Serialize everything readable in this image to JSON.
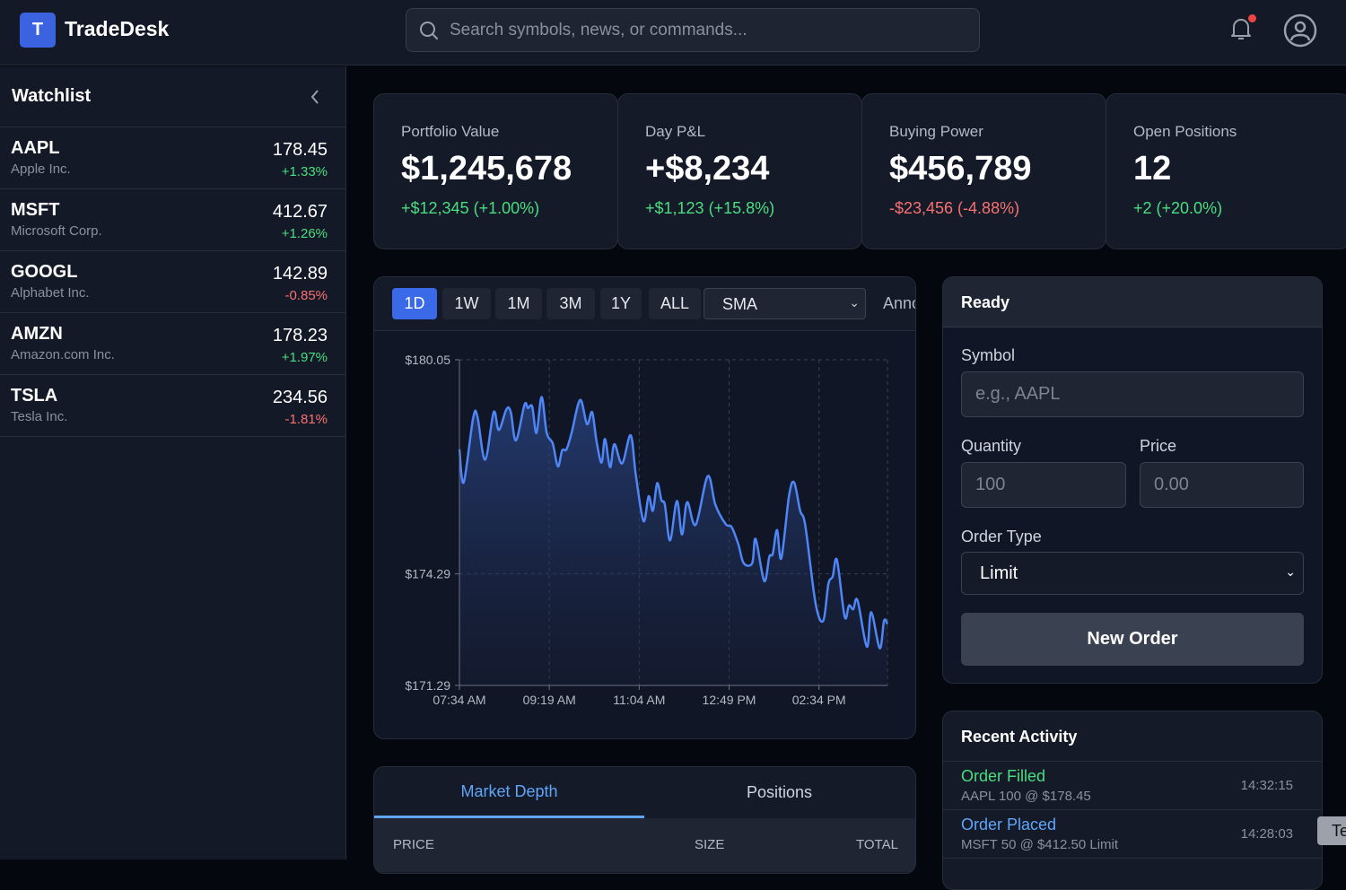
{
  "header": {
    "logo_letter": "T",
    "title": "TradeDesk",
    "search_placeholder": "Search symbols, news, or commands...",
    "notification_dot_color": "#ef4444"
  },
  "watchlist": {
    "title": "Watchlist",
    "items": [
      {
        "symbol": "AAPL",
        "name": "Apple Inc.",
        "price": "178.45",
        "change": "+1.33%",
        "dir": "pos"
      },
      {
        "symbol": "MSFT",
        "name": "Microsoft Corp.",
        "price": "412.67",
        "change": "+1.26%",
        "dir": "pos"
      },
      {
        "symbol": "GOOGL",
        "name": "Alphabet Inc.",
        "price": "142.89",
        "change": "-0.85%",
        "dir": "neg"
      },
      {
        "symbol": "AMZN",
        "name": "Amazon.com Inc.",
        "price": "178.23",
        "change": "+1.97%",
        "dir": "pos"
      },
      {
        "symbol": "TSLA",
        "name": "Tesla Inc.",
        "price": "234.56",
        "change": "-1.81%",
        "dir": "neg"
      }
    ]
  },
  "stats": [
    {
      "label": "Portfolio Value",
      "value": "$1,245,678",
      "change": "+$12,345 (+1.00%)",
      "dir": "pos"
    },
    {
      "label": "Day P&L",
      "value": "+$8,234",
      "change": "+$1,123 (+15.8%)",
      "dir": "pos"
    },
    {
      "label": "Buying Power",
      "value": "$456,789",
      "change": "-$23,456 (-4.88%)",
      "dir": "neg"
    },
    {
      "label": "Open Positions",
      "value": "12",
      "change": "+2 (+20.0%)",
      "dir": "pos"
    }
  ],
  "chart_toolbar": {
    "timeframes": [
      "1D",
      "1W",
      "1M",
      "3M",
      "1Y",
      "ALL"
    ],
    "active": "1D",
    "indicator": "SMA",
    "annotate_label": "Anno"
  },
  "chart_data": {
    "type": "area",
    "line_color": "#4f86f7",
    "grid": true,
    "ylim": [
      171.29,
      180.05
    ],
    "y_ticks": [
      "$180.05",
      "$174.29",
      "$171.29"
    ],
    "y_tick_values": [
      180.05,
      174.29,
      171.29
    ],
    "x_ticks": [
      "07:34 AM",
      "09:19 AM",
      "11:04 AM",
      "12:49 PM",
      "02:34 PM"
    ],
    "x_tick_values": [
      "07:34",
      "09:19",
      "11:04",
      "12:49",
      "14:34"
    ],
    "xlim": [
      "07:34",
      "15:54"
    ],
    "x": [
      "07:34",
      "07:39",
      "07:50",
      "07:55",
      "08:04",
      "08:14",
      "08:20",
      "08:29",
      "08:34",
      "08:40",
      "08:50",
      "08:54",
      "08:59",
      "09:04",
      "09:10",
      "09:16",
      "09:23",
      "09:29",
      "09:34",
      "09:39",
      "09:45",
      "09:55",
      "10:03",
      "10:09",
      "10:14",
      "10:20",
      "10:24",
      "10:30",
      "10:35",
      "10:44",
      "10:54",
      "11:00",
      "11:09",
      "11:15",
      "11:20",
      "11:25",
      "11:30",
      "11:34",
      "11:40",
      "11:48",
      "11:54",
      "12:00",
      "12:10",
      "12:24",
      "12:33",
      "12:45",
      "12:52",
      "13:00",
      "13:06",
      "13:16",
      "13:20",
      "13:30",
      "13:36",
      "13:40",
      "13:45",
      "13:50",
      "13:59",
      "14:05",
      "14:12",
      "14:18",
      "14:30",
      "14:39",
      "14:45",
      "14:50",
      "14:55",
      "15:04",
      "15:09",
      "15:14",
      "15:19",
      "15:30",
      "15:35",
      "15:45",
      "15:50",
      "15:54"
    ],
    "y": [
      177.64,
      176.75,
      178.48,
      178.52,
      177.36,
      178.64,
      178.16,
      178.72,
      178.64,
      177.88,
      178.84,
      178.75,
      178.79,
      178.08,
      179.05,
      178.08,
      177.8,
      177.18,
      177.61,
      177.64,
      178.08,
      178.97,
      178.32,
      178.64,
      177.88,
      177.28,
      177.92,
      177.16,
      177.78,
      177.26,
      178.02,
      176.96,
      175.71,
      176.38,
      175.99,
      176.73,
      176.27,
      176.15,
      175.19,
      176.25,
      175.35,
      176.22,
      175.61,
      176.92,
      176.15,
      175.63,
      175.55,
      175.07,
      174.58,
      174.58,
      175.23,
      174.1,
      174.75,
      174.83,
      175.47,
      174.71,
      176.39,
      176.75,
      175.99,
      175.59,
      173.5,
      173.03,
      174.02,
      174.22,
      174.66,
      173.14,
      173.44,
      173.34,
      173.58,
      172.33,
      173.26,
      172.29,
      173.03,
      172.94
    ]
  },
  "order_form": {
    "status": "Ready",
    "symbol_label": "Symbol",
    "symbol_placeholder": "e.g., AAPL",
    "quantity_label": "Quantity",
    "quantity_placeholder": "100",
    "price_label": "Price",
    "price_placeholder": "0.00",
    "order_type_label": "Order Type",
    "order_type_value": "Limit",
    "submit_label": "New Order"
  },
  "activity": {
    "title": "Recent Activity",
    "items": [
      {
        "title": "Order Filled",
        "detail": "AAPL 100 @ $178.45",
        "time": "14:32:15",
        "color": "#4ade80"
      },
      {
        "title": "Order Placed",
        "detail": "MSFT 50 @ $412.50 Limit",
        "time": "14:28:03",
        "color": "#60a5fa"
      }
    ]
  },
  "bottom_tabs": {
    "tabs": [
      "Market Depth",
      "Positions"
    ],
    "active": "Market Depth",
    "columns": [
      "PRICE",
      "SIZE",
      "TOTAL"
    ]
  },
  "tooltip": {
    "text": "Te"
  }
}
